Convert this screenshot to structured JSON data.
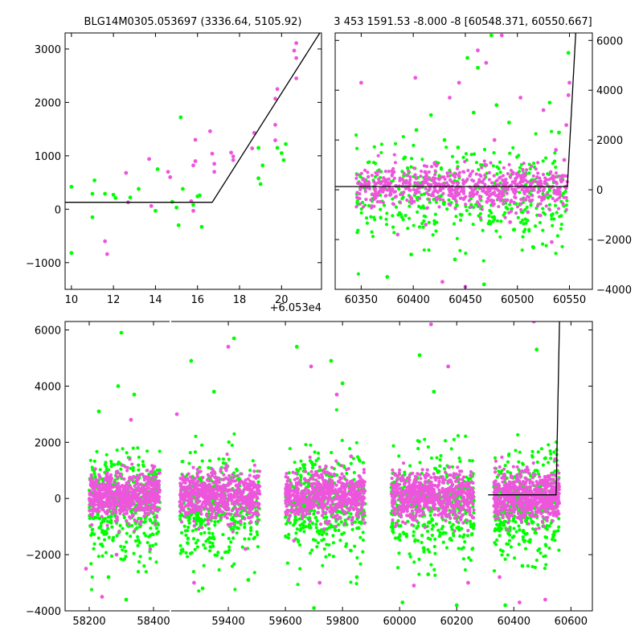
{
  "chart_data": [
    {
      "type": "scatter",
      "title": "BLG14M0305.053697 (3336.64, 5105.92)",
      "x_offset_label": "+6.053e4",
      "xlim": [
        9.7,
        21.9
      ],
      "ylim": [
        -1500,
        3300
      ],
      "x_ticks": [
        10,
        12,
        14,
        16,
        18,
        20
      ],
      "x_tick_labels": [
        "10",
        "12",
        "14",
        "16",
        "18",
        "20"
      ],
      "y_ticks": [
        -1000,
        0,
        1000,
        2000,
        3000
      ],
      "y_tick_labels": [
        "−1000",
        "0",
        "1000",
        "2000",
        "3000"
      ],
      "y_axis_side": "left",
      "series": [
        {
          "color": "#00ff00",
          "points": [
            [
              10.0,
              420
            ],
            [
              10.0,
              -820
            ],
            [
              11.0,
              290
            ],
            [
              11.0,
              -150
            ],
            [
              11.1,
              540
            ],
            [
              11.6,
              290
            ],
            [
              12.0,
              270
            ],
            [
              12.1,
              210
            ],
            [
              12.8,
              220
            ],
            [
              13.2,
              380
            ],
            [
              14.0,
              -30
            ],
            [
              14.1,
              750
            ],
            [
              14.8,
              140
            ],
            [
              15.0,
              30
            ],
            [
              15.1,
              -300
            ],
            [
              15.2,
              1720
            ],
            [
              15.3,
              380
            ],
            [
              15.8,
              80
            ],
            [
              16.0,
              240
            ],
            [
              16.1,
              260
            ],
            [
              16.2,
              -330
            ],
            [
              18.9,
              580
            ],
            [
              18.9,
              1150
            ],
            [
              19.0,
              470
            ],
            [
              19.1,
              820
            ],
            [
              19.8,
              1150
            ],
            [
              20.0,
              1050
            ],
            [
              20.1,
              920
            ],
            [
              20.2,
              1220
            ]
          ]
        },
        {
          "color": "#ee55dd",
          "points": [
            [
              11.6,
              -600
            ],
            [
              11.7,
              -840
            ],
            [
              12.6,
              680
            ],
            [
              12.7,
              130
            ],
            [
              13.7,
              940
            ],
            [
              13.8,
              60
            ],
            [
              14.6,
              700
            ],
            [
              14.7,
              600
            ],
            [
              15.7,
              150
            ],
            [
              15.8,
              -30
            ],
            [
              15.8,
              820
            ],
            [
              15.9,
              900
            ],
            [
              15.9,
              1300
            ],
            [
              16.6,
              1460
            ],
            [
              16.7,
              1040
            ],
            [
              16.8,
              850
            ],
            [
              16.8,
              700
            ],
            [
              17.6,
              1060
            ],
            [
              17.7,
              990
            ],
            [
              17.7,
              920
            ],
            [
              18.6,
              1140
            ],
            [
              18.7,
              1430
            ],
            [
              19.7,
              1290
            ],
            [
              19.7,
              1580
            ],
            [
              19.7,
              2070
            ],
            [
              19.8,
              2250
            ],
            [
              20.6,
              2970
            ],
            [
              20.7,
              2830
            ],
            [
              20.7,
              3110
            ],
            [
              20.7,
              2450
            ]
          ]
        }
      ],
      "model_line": [
        [
          9.7,
          130
        ],
        [
          16.7,
          130
        ],
        [
          21.9,
          3350
        ]
      ]
    },
    {
      "type": "scatter",
      "title": "3 453 1591.53 -8.000 -8 [60548.371, 60550.667]",
      "xlim": [
        60325,
        60572
      ],
      "ylim": [
        -4000,
        6300
      ],
      "x_ticks": [
        60350,
        60400,
        60450,
        60500,
        60550
      ],
      "x_tick_labels": [
        "60350",
        "60400",
        "60450",
        "60500",
        "60550"
      ],
      "y_ticks": [
        -4000,
        -2000,
        0,
        2000,
        4000,
        6000
      ],
      "y_tick_labels": [
        "−4000",
        "−2000",
        "0",
        "2000",
        "4000",
        "6000"
      ],
      "y_axis_side": "right",
      "series": [
        {
          "color": "#00ff00",
          "points": [
            [
              60375,
              -3500
            ],
            [
              60392,
              1300
            ],
            [
              60398,
              -2600
            ],
            [
              60403,
              2400
            ],
            [
              60417,
              3000
            ],
            [
              60430,
              2000
            ],
            [
              60440,
              -2800
            ],
            [
              60443,
              1700
            ],
            [
              60452,
              5300
            ],
            [
              60458,
              3100
            ],
            [
              60462,
              4900
            ],
            [
              60468,
              -3800
            ],
            [
              60475,
              6200
            ],
            [
              60480,
              3400
            ],
            [
              60492,
              2700
            ],
            [
              60497,
              -1600
            ],
            [
              60505,
              -900
            ],
            [
              60515,
              -2300
            ],
            [
              60531,
              3500
            ],
            [
              60540,
              2300
            ],
            [
              60549,
              5500
            ]
          ]
        },
        {
          "color": "#ee55dd",
          "points": [
            [
              60350,
              4300
            ],
            [
              60385,
              -1800
            ],
            [
              60402,
              4500
            ],
            [
              60412,
              -1400
            ],
            [
              60428,
              -3700
            ],
            [
              60435,
              3700
            ],
            [
              60444,
              4300
            ],
            [
              60450,
              -3900
            ],
            [
              60462,
              5600
            ],
            [
              60470,
              5100
            ],
            [
              60478,
              2000
            ],
            [
              60485,
              6200
            ],
            [
              60493,
              -1300
            ],
            [
              60503,
              3700
            ],
            [
              60510,
              -900
            ],
            [
              60525,
              3200
            ],
            [
              60533,
              -2100
            ],
            [
              60537,
              1600
            ],
            [
              60545,
              1200
            ],
            [
              60547,
              2600
            ],
            [
              60549,
              3800
            ],
            [
              60550,
              4300
            ]
          ]
        }
      ],
      "model_line": [
        [
          60325,
          130
        ],
        [
          60548,
          130
        ],
        [
          60556,
          6300
        ]
      ]
    },
    {
      "type": "scatter",
      "xlim": [
        58125,
        60675
      ],
      "ylim": [
        -4000,
        6300
      ],
      "x_ticks": [
        58200,
        58400,
        59400,
        59600,
        59800,
        60000,
        60200,
        60400,
        60600
      ],
      "x_tick_labels": [
        "58200",
        "58400",
        "59400",
        "59600",
        "59800",
        "60000",
        "60200",
        "60400",
        "60600"
      ],
      "y_ticks": [
        -4000,
        -2000,
        0,
        2000,
        4000,
        6000
      ],
      "y_tick_labels": [
        "−4000",
        "−2000",
        "0",
        "2000",
        "4000",
        "6000"
      ],
      "y_axis_side": "left",
      "seasons": [
        {
          "x_range": [
            58200,
            58420
          ]
        },
        {
          "x_range": [
            59230,
            59510
          ]
        },
        {
          "x_range": [
            59600,
            59880
          ]
        },
        {
          "x_range": [
            59970,
            60260
          ]
        },
        {
          "x_range": [
            60330,
            60560
          ]
        }
      ],
      "series": [
        {
          "color": "#00ff00",
          "points": [
            [
              58230,
              3100
            ],
            [
              58260,
              -2800
            ],
            [
              58290,
              4000
            ],
            [
              58300,
              5900
            ],
            [
              58315,
              -3600
            ],
            [
              58340,
              3700
            ],
            [
              59270,
              4900
            ],
            [
              59310,
              -3200
            ],
            [
              59350,
              3800
            ],
            [
              59420,
              5700
            ],
            [
              59470,
              -2900
            ],
            [
              59640,
              5400
            ],
            [
              59700,
              -3900
            ],
            [
              59760,
              4900
            ],
            [
              59800,
              4100
            ],
            [
              59850,
              -2800
            ],
            [
              60010,
              -3700
            ],
            [
              60070,
              5100
            ],
            [
              60100,
              -2700
            ],
            [
              60120,
              3800
            ],
            [
              60200,
              -3800
            ],
            [
              60370,
              -3800
            ],
            [
              60430,
              -2400
            ],
            [
              60480,
              5300
            ],
            [
              60540,
              -1300
            ]
          ]
        },
        {
          "color": "#ee55dd",
          "points": [
            [
              58190,
              -2500
            ],
            [
              58240,
              -3500
            ],
            [
              58285,
              -2000
            ],
            [
              58330,
              2800
            ],
            [
              58390,
              -1800
            ],
            [
              59220,
              3000
            ],
            [
              59280,
              -3000
            ],
            [
              59330,
              -900
            ],
            [
              59400,
              5400
            ],
            [
              59460,
              -1800
            ],
            [
              59630,
              -1500
            ],
            [
              59690,
              4700
            ],
            [
              59720,
              -3000
            ],
            [
              59780,
              3700
            ],
            [
              59830,
              1500
            ],
            [
              59990,
              -900
            ],
            [
              60050,
              -3100
            ],
            [
              60110,
              6200
            ],
            [
              60170,
              4700
            ],
            [
              60240,
              -3000
            ],
            [
              60350,
              -2800
            ],
            [
              60420,
              -3700
            ],
            [
              60470,
              6300
            ],
            [
              60510,
              -3600
            ],
            [
              60545,
              1400
            ]
          ]
        }
      ],
      "model_line": [
        [
          60310,
          130
        ],
        [
          60548,
          130
        ],
        [
          60560,
          6300
        ]
      ]
    }
  ]
}
